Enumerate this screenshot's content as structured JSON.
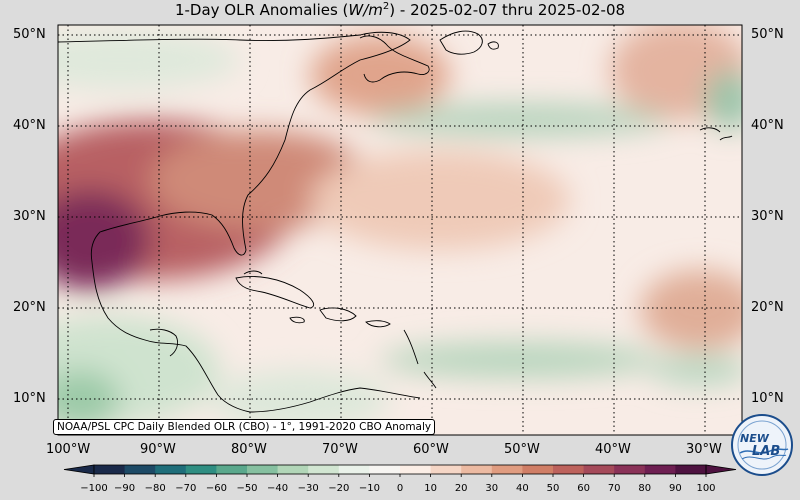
{
  "title_prefix": "1-Day OLR Anomalies (",
  "title_unit_base": "W/m",
  "title_unit_exp": "2",
  "title_suffix": ") - 2025-02-07 thru 2025-02-08",
  "lat_labels": [
    "50°N",
    "40°N",
    "30°N",
    "20°N",
    "10°N"
  ],
  "lon_labels": [
    "100°W",
    "90°W",
    "80°W",
    "70°W",
    "60°W",
    "50°W",
    "40°W",
    "30°W"
  ],
  "credit": "NOAA/PSL CPC Daily Blended OLR (CBO) - 1°, 1991-2020 CBO Anomaly",
  "colorbar": {
    "ticks": [
      "−100",
      "−90",
      "−80",
      "−70",
      "−60",
      "−50",
      "−40",
      "−30",
      "−20",
      "−10",
      "0",
      "10",
      "20",
      "30",
      "40",
      "50",
      "60",
      "70",
      "80",
      "90",
      "100"
    ],
    "colors": [
      "#1a2a4a",
      "#1d4a66",
      "#1f6e7a",
      "#2f8e82",
      "#5aa88c",
      "#86c0a0",
      "#b2d6b8",
      "#d2e6d2",
      "#eaf2ea",
      "#f7f5f2",
      "#fbeee6",
      "#f5d6c6",
      "#ecbaa2",
      "#e09c80",
      "#d07e66",
      "#bd625c",
      "#a54a5a",
      "#8a3258",
      "#6e1f52",
      "#4e1240"
    ]
  },
  "logo": {
    "line1": "NEW",
    "line2": "LAB"
  }
}
